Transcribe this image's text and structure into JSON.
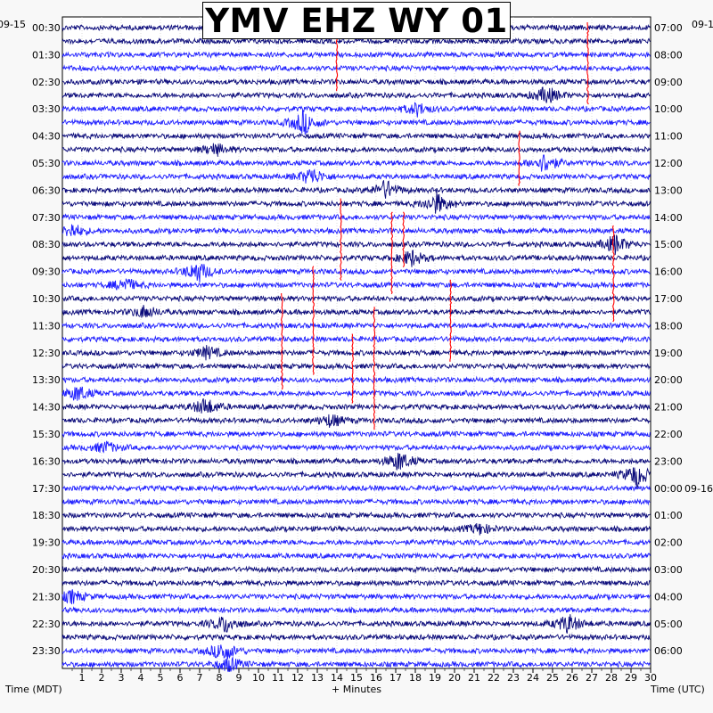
{
  "title": "YMV EHZ WY 01",
  "chart_data": {
    "type": "helicorder",
    "title": "YMV EHZ WY 01",
    "station": "YMV",
    "channel": "EHZ",
    "network": "WY",
    "location": "01",
    "left_date_label": "09-15",
    "right_date_label": "09-1",
    "right_next_date_label": "09-16",
    "left_axis_label": "Time (MDT)",
    "right_axis_label": "Time (UTC)",
    "x_axis_label": "+ Minutes",
    "x_ticks": [
      "1",
      "2",
      "3",
      "4",
      "5",
      "6",
      "7",
      "8",
      "9",
      "10",
      "11",
      "12",
      "13",
      "14",
      "15",
      "16",
      "17",
      "18",
      "19",
      "20",
      "21",
      "22",
      "23",
      "24",
      "25",
      "26",
      "27",
      "28",
      "29",
      "30"
    ],
    "xlim": [
      0,
      30
    ],
    "left_time_labels": [
      "00:30",
      "01:30",
      "02:30",
      "03:30",
      "04:30",
      "05:30",
      "06:30",
      "07:30",
      "08:30",
      "09:30",
      "10:30",
      "11:30",
      "12:30",
      "13:30",
      "14:30",
      "15:30",
      "16:30",
      "17:30",
      "18:30",
      "19:30",
      "20:30",
      "21:30",
      "22:30",
      "23:30"
    ],
    "right_time_labels": [
      "07:00",
      "08:00",
      "09:00",
      "10:00",
      "11:00",
      "12:00",
      "13:00",
      "14:00",
      "15:00",
      "16:00",
      "17:00",
      "18:00",
      "19:00",
      "20:00",
      "21:00",
      "22:00",
      "23:00",
      "00:00",
      "01:00",
      "02:00",
      "03:00",
      "04:00",
      "05:00",
      "06:00"
    ],
    "traces_per_hour": 2,
    "trace_colors": [
      "#0a0a7a",
      "#ff0000",
      "#1f1fff",
      "#00a000"
    ],
    "trace_color_sequence": [
      "#0a0a7a",
      "#0a0a7a",
      "#1f1fff",
      "#1f1fff"
    ],
    "event_color": "#ff0000",
    "events": [
      {
        "row": 0,
        "minute": 26.8,
        "span_rows": 6
      },
      {
        "row": 1,
        "minute": 14.0,
        "span_rows": 4
      },
      {
        "row": 8,
        "minute": 23.3,
        "span_rows": 4
      },
      {
        "row": 13,
        "minute": 14.2,
        "span_rows": 6
      },
      {
        "row": 14,
        "minute": 16.8,
        "span_rows": 6
      },
      {
        "row": 14,
        "minute": 17.4,
        "span_rows": 4
      },
      {
        "row": 15,
        "minute": 28.1,
        "span_rows": 7
      },
      {
        "row": 18,
        "minute": 12.8,
        "span_rows": 8
      },
      {
        "row": 19,
        "minute": 19.8,
        "span_rows": 6
      },
      {
        "row": 20,
        "minute": 11.2,
        "span_rows": 7
      },
      {
        "row": 21,
        "minute": 15.9,
        "span_rows": 9
      },
      {
        "row": 23,
        "minute": 14.8,
        "span_rows": 5
      }
    ],
    "bursts": [
      {
        "row": 5,
        "minute": 24.7,
        "amp": 2.2
      },
      {
        "row": 6,
        "minute": 18.1,
        "amp": 1.6
      },
      {
        "row": 7,
        "minute": 12.3,
        "amp": 3.0
      },
      {
        "row": 9,
        "minute": 7.8,
        "amp": 1.5
      },
      {
        "row": 10,
        "minute": 24.6,
        "amp": 2.4
      },
      {
        "row": 11,
        "minute": 12.7,
        "amp": 2.2
      },
      {
        "row": 12,
        "minute": 16.5,
        "amp": 2.4
      },
      {
        "row": 13,
        "minute": 19.1,
        "amp": 2.6
      },
      {
        "row": 15,
        "minute": 0.5,
        "amp": 1.8
      },
      {
        "row": 16,
        "minute": 28.2,
        "amp": 2.4
      },
      {
        "row": 17,
        "minute": 17.8,
        "amp": 2.0
      },
      {
        "row": 18,
        "minute": 6.9,
        "amp": 2.8
      },
      {
        "row": 19,
        "minute": 3.2,
        "amp": 1.8
      },
      {
        "row": 21,
        "minute": 4.2,
        "amp": 1.6
      },
      {
        "row": 24,
        "minute": 7.4,
        "amp": 1.6
      },
      {
        "row": 27,
        "minute": 0.8,
        "amp": 2.0
      },
      {
        "row": 28,
        "minute": 7.3,
        "amp": 2.2
      },
      {
        "row": 29,
        "minute": 13.7,
        "amp": 1.6
      },
      {
        "row": 31,
        "minute": 2.2,
        "amp": 1.4
      },
      {
        "row": 32,
        "minute": 17.2,
        "amp": 2.4
      },
      {
        "row": 33,
        "minute": 29.3,
        "amp": 3.0
      },
      {
        "row": 37,
        "minute": 21.3,
        "amp": 1.4
      },
      {
        "row": 42,
        "minute": 0.5,
        "amp": 1.6
      },
      {
        "row": 44,
        "minute": 8.3,
        "amp": 2.2
      },
      {
        "row": 44,
        "minute": 25.8,
        "amp": 2.4
      },
      {
        "row": 46,
        "minute": 8.2,
        "amp": 2.6
      },
      {
        "row": 47,
        "minute": 8.5,
        "amp": 1.8
      }
    ]
  }
}
